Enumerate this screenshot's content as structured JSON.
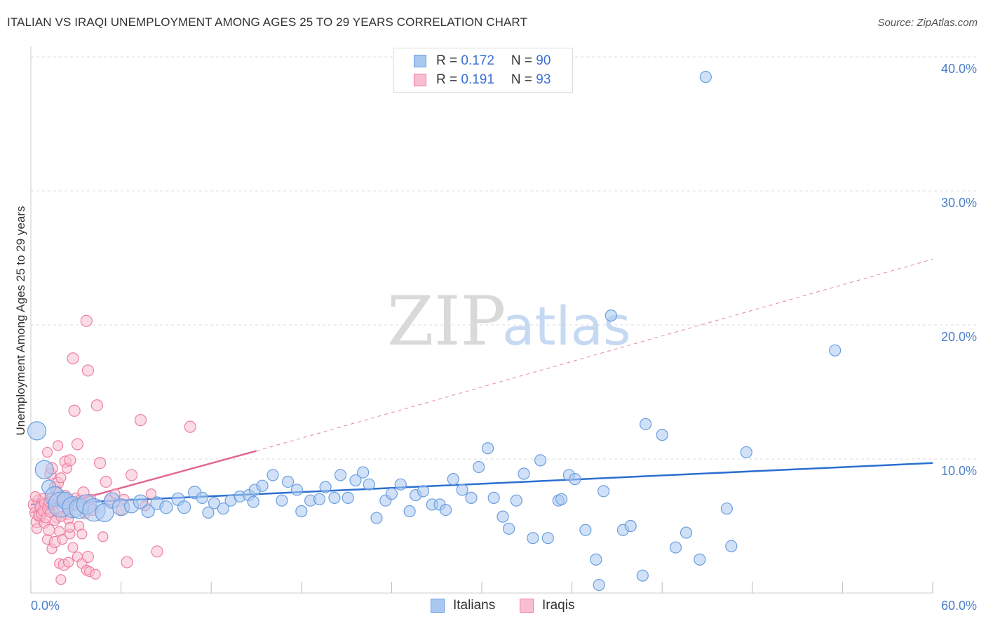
{
  "title": "ITALIAN VS IRAQI UNEMPLOYMENT AMONG AGES 25 TO 29 YEARS CORRELATION CHART",
  "source": "Source: ZipAtlas.com",
  "watermark": {
    "zip": "ZIP",
    "atlas": "atlas"
  },
  "legend": {
    "italians": {
      "r_label": "R = ",
      "r_value": "0.172",
      "n_label": "N = ",
      "n_value": "90"
    },
    "iraqis": {
      "r_label": "R = ",
      "r_value": "0.191",
      "n_label": "N = ",
      "n_value": "93"
    }
  },
  "bottom_legend": {
    "italians": "Italians",
    "iraqis": "Iraqis"
  },
  "colors": {
    "italians_fill": "#a9c8f0",
    "italians_stroke": "#6a9ee0",
    "italians_line": "#2b6fd1",
    "iraqis_fill": "#f8bfd0",
    "iraqis_stroke": "#ee7fa2",
    "iraqis_line": "#e2668f",
    "tick": "#4a7fc9",
    "grid": "#dddddd"
  },
  "chart_data": {
    "type": "scatter",
    "title": "ITALIAN VS IRAQI UNEMPLOYMENT AMONG AGES 25 TO 29 YEARS CORRELATION CHART",
    "xlabel": "",
    "ylabel": "Unemployment Among Ages 25 to 29 years",
    "xlim": [
      0,
      60
    ],
    "ylim": [
      0,
      42
    ],
    "x_tick_labels": [
      "0.0%",
      "60.0%"
    ],
    "y_ticks": [
      10,
      20,
      30,
      40
    ],
    "y_tick_labels": [
      "10.0%",
      "20.0%",
      "30.0%",
      "40.0%"
    ],
    "grid": true,
    "legend_position": "top-center",
    "series": [
      {
        "name": "Italians",
        "r": 0.172,
        "n": 90,
        "trend": {
          "x": [
            0,
            60
          ],
          "y": [
            6.6,
            9.7
          ],
          "style": "solid"
        },
        "points": [
          [
            0.4,
            12.1,
            13
          ],
          [
            0.9,
            9.2,
            13
          ],
          [
            1.2,
            7.9,
            10
          ],
          [
            1.6,
            7.2,
            14
          ],
          [
            2.0,
            6.6,
            18
          ],
          [
            2.3,
            6.9,
            12
          ],
          [
            2.8,
            6.4,
            15
          ],
          [
            3.2,
            6.3,
            14
          ],
          [
            3.7,
            6.6,
            14
          ],
          [
            4.2,
            6.2,
            16
          ],
          [
            4.9,
            6.0,
            13
          ],
          [
            5.4,
            6.9,
            11
          ],
          [
            6.0,
            6.4,
            12
          ],
          [
            6.7,
            6.5,
            10
          ],
          [
            7.3,
            6.8,
            10
          ],
          [
            7.8,
            6.1,
            9
          ],
          [
            8.4,
            6.7,
            9
          ],
          [
            9.0,
            6.4,
            9
          ],
          [
            9.8,
            7.0,
            9
          ],
          [
            10.2,
            6.4,
            9
          ],
          [
            10.9,
            7.5,
            9
          ],
          [
            11.4,
            7.1,
            8
          ],
          [
            11.8,
            6.0,
            8
          ],
          [
            12.2,
            6.7,
            8
          ],
          [
            12.8,
            6.3,
            8
          ],
          [
            13.3,
            6.9,
            8
          ],
          [
            13.9,
            7.2,
            8
          ],
          [
            14.5,
            7.3,
            8
          ],
          [
            14.9,
            7.7,
            8
          ],
          [
            15.4,
            8.0,
            8
          ],
          [
            14.8,
            6.8,
            8
          ],
          [
            16.1,
            8.8,
            8
          ],
          [
            16.7,
            6.9,
            8
          ],
          [
            17.1,
            8.3,
            8
          ],
          [
            17.7,
            7.7,
            8
          ],
          [
            18.0,
            6.1,
            8
          ],
          [
            18.6,
            6.9,
            8
          ],
          [
            19.2,
            7.0,
            8
          ],
          [
            19.6,
            7.9,
            8
          ],
          [
            20.2,
            7.1,
            8
          ],
          [
            20.6,
            8.8,
            8
          ],
          [
            21.1,
            7.1,
            8
          ],
          [
            21.6,
            8.4,
            8
          ],
          [
            22.1,
            9.0,
            8
          ],
          [
            22.5,
            8.1,
            8
          ],
          [
            23.0,
            5.6,
            8
          ],
          [
            23.6,
            6.9,
            8
          ],
          [
            24.0,
            7.4,
            8
          ],
          [
            24.6,
            8.1,
            8
          ],
          [
            25.2,
            6.1,
            8
          ],
          [
            25.6,
            7.3,
            8
          ],
          [
            26.1,
            7.6,
            8
          ],
          [
            26.7,
            6.6,
            8
          ],
          [
            27.2,
            6.6,
            8
          ],
          [
            27.6,
            6.2,
            8
          ],
          [
            28.1,
            8.5,
            8
          ],
          [
            28.7,
            7.7,
            8
          ],
          [
            29.3,
            7.1,
            8
          ],
          [
            29.8,
            9.4,
            8
          ],
          [
            30.4,
            10.8,
            8
          ],
          [
            30.8,
            7.1,
            8
          ],
          [
            31.4,
            5.7,
            8
          ],
          [
            31.8,
            4.8,
            8
          ],
          [
            32.3,
            6.9,
            8
          ],
          [
            32.8,
            8.9,
            8
          ],
          [
            33.4,
            4.1,
            8
          ],
          [
            33.9,
            9.9,
            8
          ],
          [
            34.4,
            4.1,
            8
          ],
          [
            35.1,
            6.9,
            8
          ],
          [
            35.3,
            7.0,
            8
          ],
          [
            35.8,
            8.8,
            8
          ],
          [
            36.2,
            8.5,
            8
          ],
          [
            36.9,
            4.7,
            8
          ],
          [
            37.6,
            2.5,
            8
          ],
          [
            37.8,
            0.6,
            8
          ],
          [
            38.1,
            7.6,
            8
          ],
          [
            38.6,
            20.7,
            8
          ],
          [
            39.4,
            4.7,
            8
          ],
          [
            39.9,
            5.0,
            8
          ],
          [
            40.7,
            1.3,
            8
          ],
          [
            40.9,
            12.6,
            8
          ],
          [
            42.0,
            11.8,
            8
          ],
          [
            42.9,
            3.4,
            8
          ],
          [
            43.6,
            4.5,
            8
          ],
          [
            44.5,
            2.5,
            8
          ],
          [
            44.9,
            38.5,
            8
          ],
          [
            46.3,
            6.3,
            8
          ],
          [
            46.6,
            3.5,
            8
          ],
          [
            47.6,
            10.5,
            8
          ],
          [
            53.5,
            18.1,
            8
          ]
        ]
      },
      {
        "name": "Iraqis",
        "r": 0.191,
        "n": 93,
        "trend": {
          "x": [
            0,
            15
          ],
          "y": [
            6.0,
            10.6
          ],
          "style": "solid",
          "extension": {
            "x": [
              15,
              60
            ],
            "y": [
              10.6,
              24.9
            ],
            "style": "dashed"
          }
        },
        "points": [
          [
            0.2,
            6.6,
            8
          ],
          [
            0.3,
            6.0,
            8
          ],
          [
            0.4,
            5.3,
            8
          ],
          [
            0.4,
            4.8,
            7
          ],
          [
            0.5,
            6.9,
            8
          ],
          [
            0.6,
            5.7,
            8
          ],
          [
            0.7,
            6.5,
            8
          ],
          [
            0.8,
            7.0,
            8
          ],
          [
            0.9,
            5.2,
            7
          ],
          [
            1.0,
            6.2,
            8
          ],
          [
            1.1,
            4.0,
            7
          ],
          [
            1.1,
            10.5,
            7
          ],
          [
            1.2,
            4.7,
            8
          ],
          [
            1.3,
            8.9,
            8
          ],
          [
            1.4,
            3.3,
            7
          ],
          [
            1.4,
            9.3,
            8
          ],
          [
            1.5,
            6.1,
            8
          ],
          [
            1.6,
            3.8,
            8
          ],
          [
            1.6,
            7.9,
            8
          ],
          [
            1.7,
            5.6,
            7
          ],
          [
            1.8,
            8.2,
            8
          ],
          [
            1.8,
            11.0,
            7
          ],
          [
            1.9,
            2.2,
            7
          ],
          [
            1.9,
            4.6,
            7
          ],
          [
            2.0,
            8.6,
            7
          ],
          [
            2.0,
            1.0,
            7
          ],
          [
            2.1,
            6.9,
            8
          ],
          [
            2.1,
            4.0,
            7
          ],
          [
            2.2,
            2.1,
            8
          ],
          [
            2.3,
            9.8,
            8
          ],
          [
            2.3,
            7.3,
            7
          ],
          [
            2.4,
            5.9,
            8
          ],
          [
            2.4,
            9.3,
            7
          ],
          [
            2.5,
            5.5,
            7
          ],
          [
            2.5,
            2.3,
            7
          ],
          [
            2.6,
            9.9,
            8
          ],
          [
            2.6,
            4.4,
            7
          ],
          [
            2.7,
            6.6,
            8
          ],
          [
            2.8,
            3.4,
            7
          ],
          [
            2.8,
            17.5,
            8
          ],
          [
            2.9,
            13.6,
            8
          ],
          [
            3.0,
            7.1,
            7
          ],
          [
            3.1,
            11.1,
            8
          ],
          [
            3.1,
            2.7,
            7
          ],
          [
            3.2,
            5.0,
            7
          ],
          [
            3.3,
            6.9,
            8
          ],
          [
            3.4,
            2.2,
            7
          ],
          [
            3.5,
            7.5,
            8
          ],
          [
            3.6,
            5.9,
            7
          ],
          [
            3.7,
            1.7,
            7
          ],
          [
            3.7,
            20.3,
            8
          ],
          [
            3.8,
            2.7,
            8
          ],
          [
            3.8,
            16.6,
            8
          ],
          [
            3.9,
            1.6,
            7
          ],
          [
            4.0,
            7.0,
            7
          ],
          [
            4.1,
            6.2,
            8
          ],
          [
            4.3,
            1.4,
            7
          ],
          [
            4.4,
            14.0,
            8
          ],
          [
            4.6,
            9.7,
            8
          ],
          [
            4.8,
            4.2,
            7
          ],
          [
            5.0,
            8.3,
            8
          ],
          [
            5.2,
            6.9,
            7
          ],
          [
            5.6,
            7.4,
            7
          ],
          [
            6.0,
            6.2,
            7
          ],
          [
            6.2,
            7.0,
            7
          ],
          [
            6.4,
            2.3,
            8
          ],
          [
            6.7,
            8.8,
            8
          ],
          [
            7.3,
            12.9,
            8
          ],
          [
            7.6,
            6.5,
            7
          ],
          [
            8.0,
            7.4,
            7
          ],
          [
            8.4,
            3.1,
            8
          ],
          [
            10.6,
            12.4,
            8
          ],
          [
            0.3,
            7.2,
            7
          ],
          [
            0.5,
            5.8,
            7
          ],
          [
            0.6,
            6.4,
            7
          ],
          [
            0.7,
            5.9,
            7
          ],
          [
            0.8,
            6.1,
            7
          ],
          [
            0.9,
            6.7,
            7
          ],
          [
            1.0,
            5.6,
            7
          ],
          [
            1.1,
            6.3,
            7
          ],
          [
            1.2,
            6.8,
            7
          ],
          [
            1.3,
            6.0,
            7
          ],
          [
            1.4,
            7.1,
            7
          ],
          [
            1.5,
            6.6,
            7
          ],
          [
            1.6,
            5.4,
            7
          ],
          [
            1.7,
            7.6,
            7
          ],
          [
            1.8,
            6.2,
            7
          ],
          [
            2.0,
            5.7,
            7
          ],
          [
            2.2,
            7.0,
            7
          ],
          [
            2.4,
            6.4,
            7
          ],
          [
            2.6,
            4.9,
            7
          ],
          [
            2.9,
            6.5,
            7
          ],
          [
            3.4,
            4.4,
            7
          ]
        ]
      }
    ]
  }
}
